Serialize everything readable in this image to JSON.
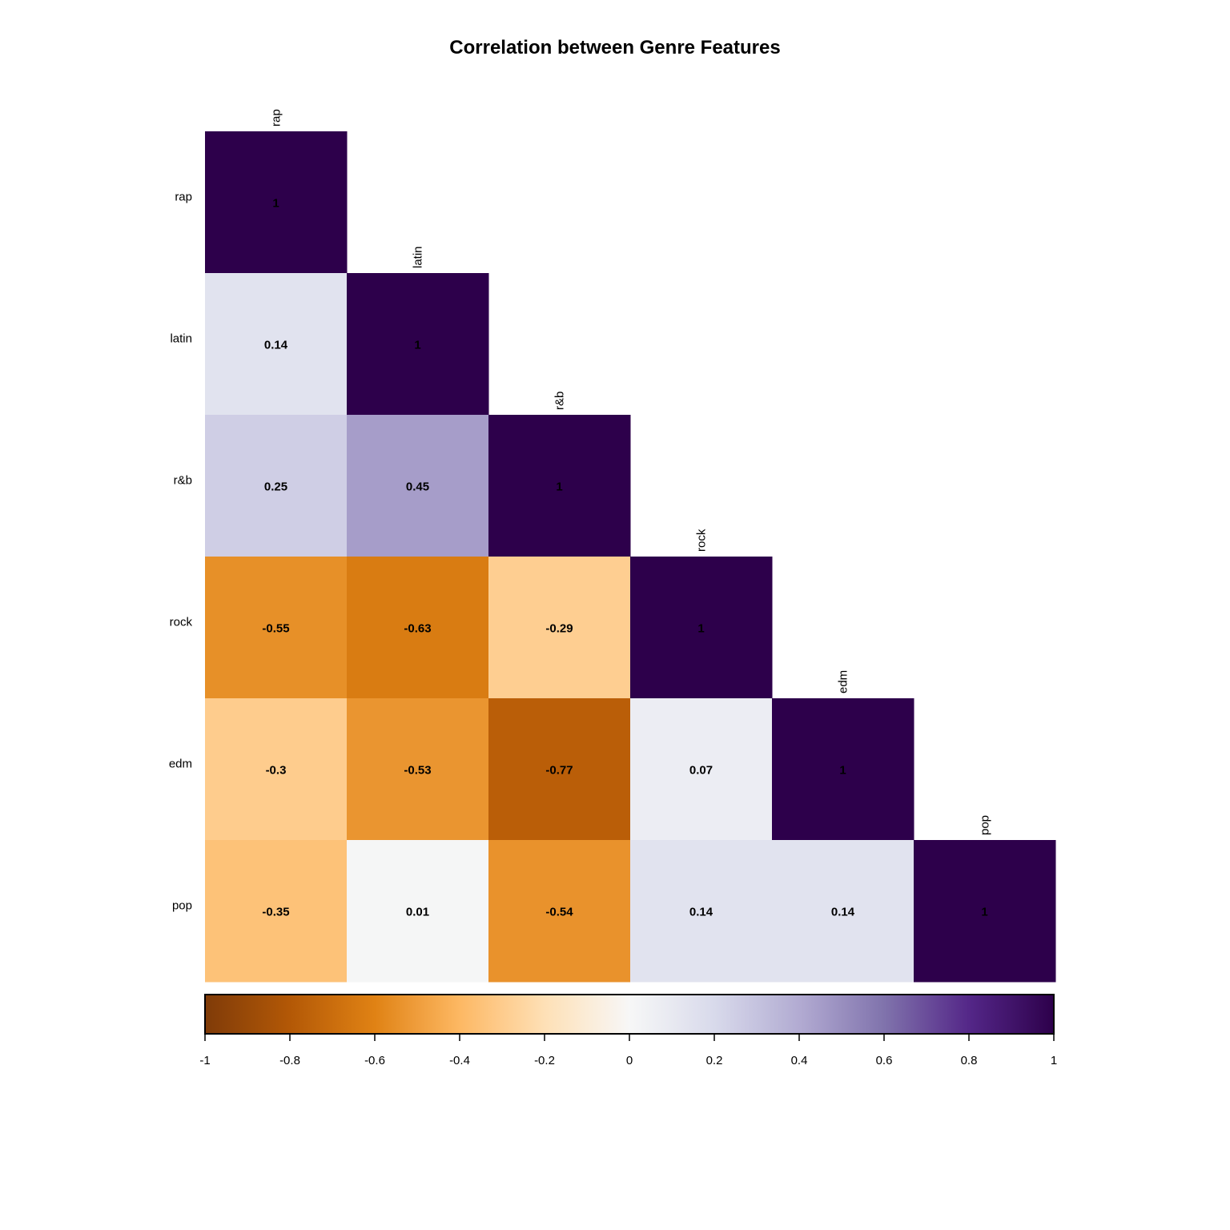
{
  "chart_data": {
    "type": "heatmap",
    "title": "Correlation between Genre Features",
    "labels": [
      "rap",
      "latin",
      "r&b",
      "rock",
      "edm",
      "pop"
    ],
    "layout": "lower-triangle",
    "matrix": [
      [
        1,
        null,
        null,
        null,
        null,
        null
      ],
      [
        0.14,
        1,
        null,
        null,
        null,
        null
      ],
      [
        0.25,
        0.45,
        1,
        null,
        null,
        null
      ],
      [
        -0.55,
        -0.63,
        -0.29,
        1,
        null,
        null
      ],
      [
        -0.3,
        -0.53,
        -0.77,
        0.07,
        1,
        null
      ],
      [
        -0.35,
        0.01,
        -0.54,
        0.14,
        0.14,
        1
      ]
    ],
    "value_labels": [
      [
        "1",
        "",
        "",
        "",
        "",
        ""
      ],
      [
        "0.14",
        "1",
        "",
        "",
        "",
        ""
      ],
      [
        "0.25",
        "0.45",
        "1",
        "",
        "",
        ""
      ],
      [
        "-0.55",
        "-0.63",
        "-0.29",
        "1",
        "",
        ""
      ],
      [
        "-0.3",
        "-0.53",
        "-0.77",
        "0.07",
        "1",
        ""
      ],
      [
        "-0.35",
        "0.01",
        "-0.54",
        "0.14",
        "0.14",
        "1"
      ]
    ],
    "colorbar": {
      "range": [
        -1,
        1
      ],
      "ticks": [
        -1,
        -0.8,
        -0.6,
        -0.4,
        -0.2,
        0,
        0.2,
        0.4,
        0.6,
        0.8,
        1
      ],
      "tick_labels": [
        "-1",
        "-0.8",
        "-0.6",
        "-0.4",
        "-0.2",
        "0",
        "0.2",
        "0.4",
        "0.6",
        "0.8",
        "1"
      ],
      "placement": "bottom"
    },
    "palette": [
      "#2d004b",
      "#542788",
      "#8073ac",
      "#b2abd2",
      "#d8daeb",
      "#f7f7f7",
      "#fee0b6",
      "#fdb863",
      "#e08214",
      "#b35806",
      "#7f3b08"
    ],
    "grid": false
  }
}
